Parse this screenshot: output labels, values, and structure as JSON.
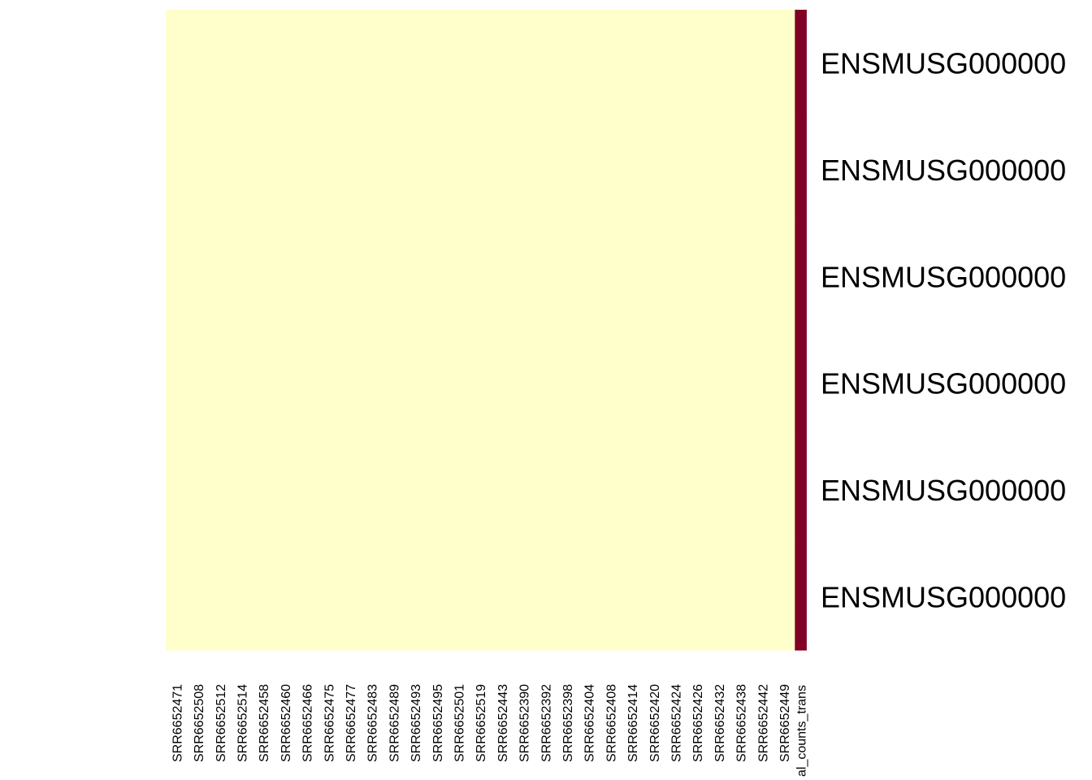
{
  "chart_data": {
    "type": "heatmap",
    "title": "",
    "xlabel": "",
    "ylabel": "",
    "columns": [
      "SRR6652471",
      "SRR6652508",
      "SRR6652512",
      "SRR6652514",
      "SRR6652458",
      "SRR6652460",
      "SRR6652466",
      "SRR6652475",
      "SRR6652477",
      "SRR6652483",
      "SRR6652489",
      "SRR6652493",
      "SRR6652495",
      "SRR6652501",
      "SRR6652519",
      "SRR6652443",
      "SRR6652390",
      "SRR6652392",
      "SRR6652398",
      "SRR6652404",
      "SRR6652408",
      "SRR6652414",
      "SRR6652420",
      "SRR6652424",
      "SRR6652426",
      "SRR6652432",
      "SRR6652438",
      "SRR6652442",
      "SRR6652449",
      "al_counts_trans"
    ],
    "rows": [
      "ENSMUSG000000",
      "ENSMUSG000000",
      "ENSMUSG000000",
      "ENSMUSG000000",
      "ENSMUSG000000",
      "ENSMUSG000000"
    ],
    "values": [
      [
        0,
        0,
        0,
        0,
        0,
        0,
        0,
        0,
        0,
        0,
        0,
        0,
        0,
        0,
        0,
        0,
        0,
        0,
        0,
        0,
        0,
        0,
        0,
        0,
        0,
        0,
        0,
        0,
        0,
        1
      ],
      [
        0,
        0,
        0,
        0,
        0,
        0,
        0,
        0,
        0,
        0,
        0,
        0,
        0,
        0,
        0,
        0,
        0,
        0,
        0,
        0,
        0,
        0,
        0,
        0,
        0,
        0,
        0,
        0,
        0,
        1
      ],
      [
        0,
        0,
        0,
        0,
        0,
        0,
        0,
        0,
        0,
        0,
        0,
        0,
        0,
        0,
        0,
        0,
        0,
        0,
        0,
        0,
        0,
        0,
        0,
        0,
        0,
        0,
        0,
        0,
        0,
        1
      ],
      [
        0,
        0,
        0,
        0,
        0,
        0,
        0,
        0,
        0,
        0,
        0,
        0,
        0,
        0,
        0,
        0,
        0,
        0,
        0,
        0,
        0,
        0,
        0,
        0,
        0,
        0,
        0,
        0,
        0,
        1
      ],
      [
        0,
        0,
        0,
        0,
        0,
        0,
        0,
        0,
        0,
        0,
        0,
        0,
        0,
        0,
        0,
        0,
        0,
        0,
        0,
        0,
        0,
        0,
        0,
        0,
        0,
        0,
        0,
        0,
        0,
        1
      ],
      [
        0,
        0,
        0,
        0,
        0,
        0,
        0,
        0,
        0,
        0,
        0,
        0,
        0,
        0,
        0,
        0,
        0,
        0,
        0,
        0,
        0,
        0,
        0,
        0,
        0,
        0,
        0,
        0,
        0,
        1
      ]
    ],
    "color_low": "#FFFFCC",
    "color_high": "#800026",
    "legend": "none"
  }
}
